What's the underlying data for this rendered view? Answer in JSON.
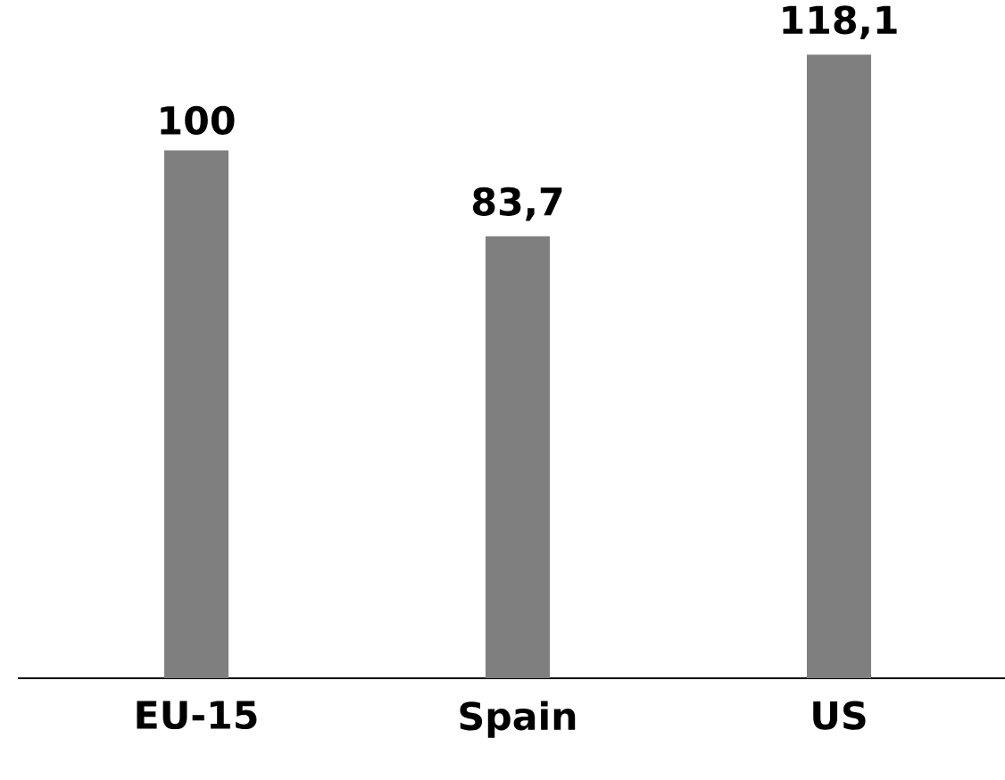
{
  "chart_data": {
    "type": "bar",
    "categories": [
      "EU-15",
      "Spain",
      "US"
    ],
    "values": [
      100,
      83.7,
      118.1
    ],
    "value_labels": [
      "100",
      "83,7",
      "118,1"
    ],
    "color": "#7f7f7f"
  }
}
